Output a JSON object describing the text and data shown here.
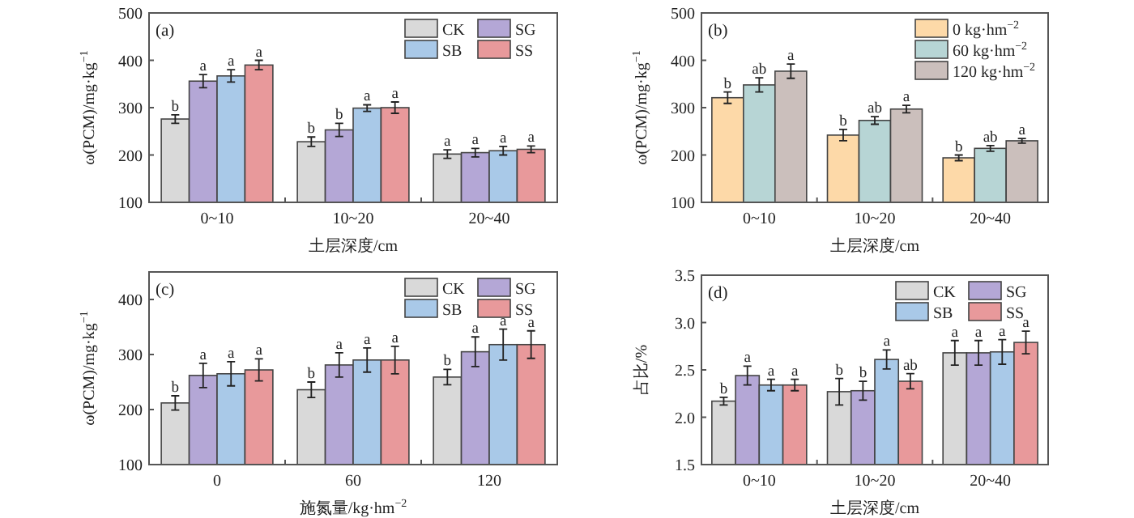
{
  "chart_data": [
    {
      "type": "bar",
      "title": "(a)",
      "xlabel": "土层深度/cm",
      "ylabel": "ω(PCM)/mg·kg$^{−1}$",
      "categories": [
        "0~10",
        "10~20",
        "20~40"
      ],
      "ylim": [
        100,
        500
      ],
      "yticks": [
        100,
        200,
        300,
        400,
        500
      ],
      "legend": "top right",
      "series": [
        {
          "name": "CK",
          "color": "#d9d9d9",
          "values": [
            276,
            228,
            202
          ],
          "errors": [
            9,
            10,
            9
          ],
          "value_labels": [
            "b",
            "b",
            "a"
          ]
        },
        {
          "name": "SG",
          "color": "#b4a7d6",
          "values": [
            356,
            253,
            205
          ],
          "errors": [
            14,
            14,
            9
          ],
          "value_labels": [
            "a",
            "b",
            "a"
          ]
        },
        {
          "name": "SB",
          "color": "#a9c9e8",
          "values": [
            367,
            299,
            209
          ],
          "errors": [
            13,
            7,
            9
          ],
          "value_labels": [
            "a",
            "a",
            "a"
          ]
        },
        {
          "name": "SS",
          "color": "#e8999b",
          "values": [
            390,
            300,
            212
          ],
          "errors": [
            10,
            12,
            7
          ],
          "value_labels": [
            "a",
            "a",
            "a"
          ]
        }
      ]
    },
    {
      "type": "bar",
      "title": "(b)",
      "xlabel": "土层深度/cm",
      "ylabel": "ω(PCM)/mg·kg$^{−1}$",
      "categories": [
        "0~10",
        "10~20",
        "20~40"
      ],
      "ylim": [
        100,
        500
      ],
      "yticks": [
        100,
        200,
        300,
        400,
        500
      ],
      "legend": "top right",
      "series": [
        {
          "name": "0 kg·hm$^{−2}$",
          "color": "#fdd9a8",
          "values": [
            321,
            242,
            194
          ],
          "errors": [
            12,
            12,
            6
          ],
          "value_labels": [
            "b",
            "b",
            "b"
          ]
        },
        {
          "name": "60 kg·hm$^{−2}$",
          "color": "#b7d5d5",
          "values": [
            348,
            273,
            214
          ],
          "errors": [
            15,
            8,
            6
          ],
          "value_labels": [
            "ab",
            "ab",
            "ab"
          ]
        },
        {
          "name": "120 kg·hm$^{−2}$",
          "color": "#cbbfbc",
          "values": [
            377,
            297,
            230
          ],
          "errors": [
            15,
            8,
            5
          ],
          "value_labels": [
            "a",
            "a",
            "a"
          ]
        }
      ]
    },
    {
      "type": "bar",
      "title": "(c)",
      "xlabel": "施氮量/kg·hm$^{−2}$",
      "ylabel": "ω(PCM)/mg·kg$^{−1}$",
      "categories": [
        "0",
        "60",
        "120"
      ],
      "ylim": [
        100,
        450
      ],
      "yticks": [
        100,
        200,
        300,
        400
      ],
      "legend": "top right",
      "series": [
        {
          "name": "CK",
          "color": "#d9d9d9",
          "values": [
            212,
            236,
            259
          ],
          "errors": [
            13,
            14,
            14
          ],
          "value_labels": [
            "b",
            "b",
            "b"
          ]
        },
        {
          "name": "SG",
          "color": "#b4a7d6",
          "values": [
            262,
            281,
            305
          ],
          "errors": [
            22,
            22,
            27
          ],
          "value_labels": [
            "a",
            "a",
            "a"
          ]
        },
        {
          "name": "SB",
          "color": "#a9c9e8",
          "values": [
            265,
            290,
            318
          ],
          "errors": [
            22,
            22,
            28
          ],
          "value_labels": [
            "a",
            "a",
            "a"
          ]
        },
        {
          "name": "SS",
          "color": "#e8999b",
          "values": [
            272,
            290,
            318
          ],
          "errors": [
            20,
            25,
            25
          ],
          "value_labels": [
            "a",
            "a",
            "a"
          ]
        }
      ]
    },
    {
      "type": "bar",
      "title": "(d)",
      "xlabel": "土层深度/cm",
      "ylabel": "占比/%",
      "categories": [
        "0~10",
        "10~20",
        "20~40"
      ],
      "ylim": [
        1.5,
        3.5
      ],
      "yticks": [
        1.5,
        {
          "value": 2,
          "label": "2.0"
        },
        2.5,
        {
          "value": 3,
          "label": "3.0"
        },
        3.5
      ],
      "legend": "top right",
      "series": [
        {
          "name": "CK",
          "color": "#d9d9d9",
          "values": [
            2.17,
            2.27,
            2.68
          ],
          "errors": [
            0.04,
            0.14,
            0.13
          ],
          "value_labels": [
            "b",
            "b",
            "a"
          ]
        },
        {
          "name": "SG",
          "color": "#b4a7d6",
          "values": [
            2.44,
            2.28,
            2.68
          ],
          "errors": [
            0.1,
            0.1,
            0.13
          ],
          "value_labels": [
            "a",
            "b",
            "a"
          ]
        },
        {
          "name": "SB",
          "color": "#a9c9e8",
          "values": [
            2.34,
            2.61,
            2.69
          ],
          "errors": [
            0.06,
            0.1,
            0.13
          ],
          "value_labels": [
            "a",
            "a",
            "a"
          ]
        },
        {
          "name": "SS",
          "color": "#e8999b",
          "values": [
            2.34,
            2.38,
            2.79
          ],
          "errors": [
            0.06,
            0.08,
            0.12
          ],
          "value_labels": [
            "a",
            "ab",
            "a"
          ]
        }
      ]
    }
  ]
}
